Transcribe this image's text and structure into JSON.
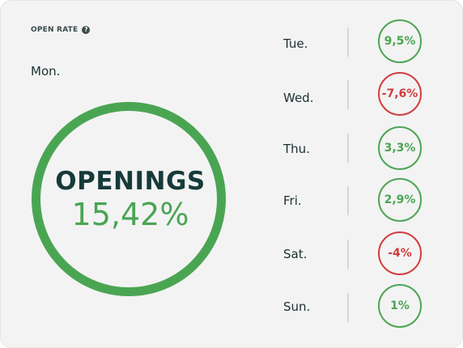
{
  "header": {
    "label": "OPEN RATE",
    "help_icon": "question-circle-icon"
  },
  "main": {
    "day": "Mon.",
    "title": "OPENINGS",
    "value": "15,42%"
  },
  "days": [
    {
      "day": "Tue.",
      "value": "9,5%",
      "status": "positive"
    },
    {
      "day": "Wed.",
      "value": "-7,6%",
      "status": "negative"
    },
    {
      "day": "Thu.",
      "value": "3,3%",
      "status": "positive"
    },
    {
      "day": "Fri.",
      "value": "2,9%",
      "status": "positive"
    },
    {
      "day": "Sat.",
      "value": "-4%",
      "status": "negative"
    },
    {
      "day": "Sun.",
      "value": "1%",
      "status": "positive"
    }
  ],
  "colors": {
    "positive": "#4aa553",
    "negative": "#d13d3d",
    "text": "#1d3030"
  }
}
